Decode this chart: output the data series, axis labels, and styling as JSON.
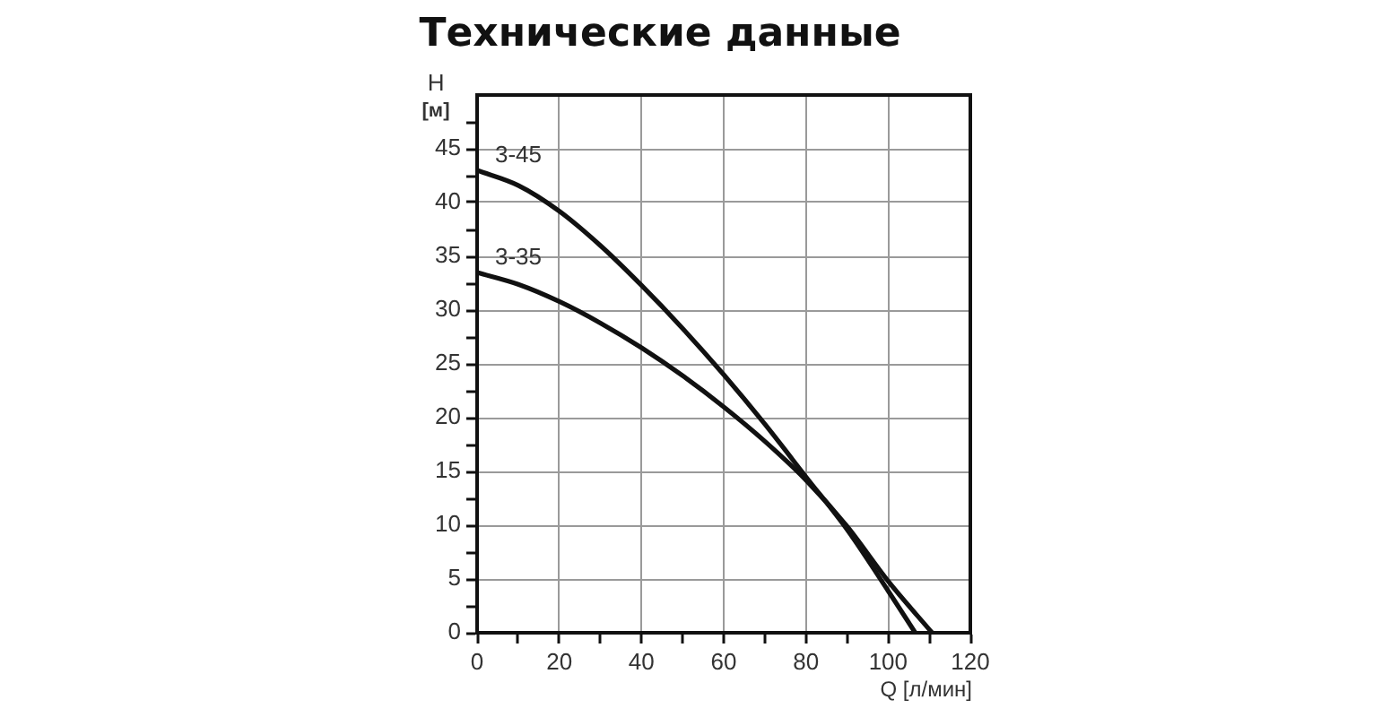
{
  "chart_data": {
    "type": "line",
    "title": "Технические данные",
    "xlabel": "Q [л/мин]",
    "ylabel": "H [м]",
    "series": [
      {
        "name": "3-45",
        "color": "#111111",
        "x": [
          0,
          10,
          20,
          30,
          40,
          50,
          60,
          70,
          80,
          90,
          100,
          106.6
        ],
        "values": [
          43,
          41.6,
          39.2,
          36,
          32.3,
          28.3,
          24,
          19.4,
          14.5,
          9.6,
          3.9,
          0
        ]
      },
      {
        "name": "3-35",
        "color": "#111111",
        "x": [
          0,
          10,
          20,
          30,
          40,
          50,
          60,
          70,
          80,
          90,
          100,
          110.7
        ],
        "values": [
          33.5,
          32.4,
          30.8,
          28.8,
          26.5,
          23.9,
          21,
          17.8,
          14.2,
          9.9,
          4.8,
          0
        ]
      }
    ],
    "xlim": [
      0,
      120
    ],
    "xticks": [
      0,
      {
        "value": 10,
        "label": null
      },
      20,
      {
        "value": 30,
        "label": null
      },
      40,
      {
        "value": 50,
        "label": null
      },
      60,
      {
        "value": 70,
        "label": null
      },
      80,
      {
        "value": 90,
        "label": null
      },
      100,
      {
        "value": 110,
        "label": null
      },
      120
    ],
    "ylim": [
      0,
      50
    ],
    "yticks": [
      0,
      {
        "value": 2.5,
        "label": null
      },
      5,
      {
        "value": 7.5,
        "label": null
      },
      10,
      {
        "value": 12.5,
        "label": null
      },
      15,
      {
        "value": 17.5,
        "label": null
      },
      20,
      {
        "value": 22.5,
        "label": null
      },
      25,
      {
        "value": 27.5,
        "label": null
      },
      30,
      {
        "value": 32.5,
        "label": null
      },
      35,
      {
        "value": 37.5,
        "label": null
      },
      40,
      {
        "value": 42.5,
        "label": null
      },
      45,
      {
        "value": 47.5,
        "label": null
      }
    ],
    "grid": true,
    "marker": "none",
    "line_style": "solid"
  }
}
